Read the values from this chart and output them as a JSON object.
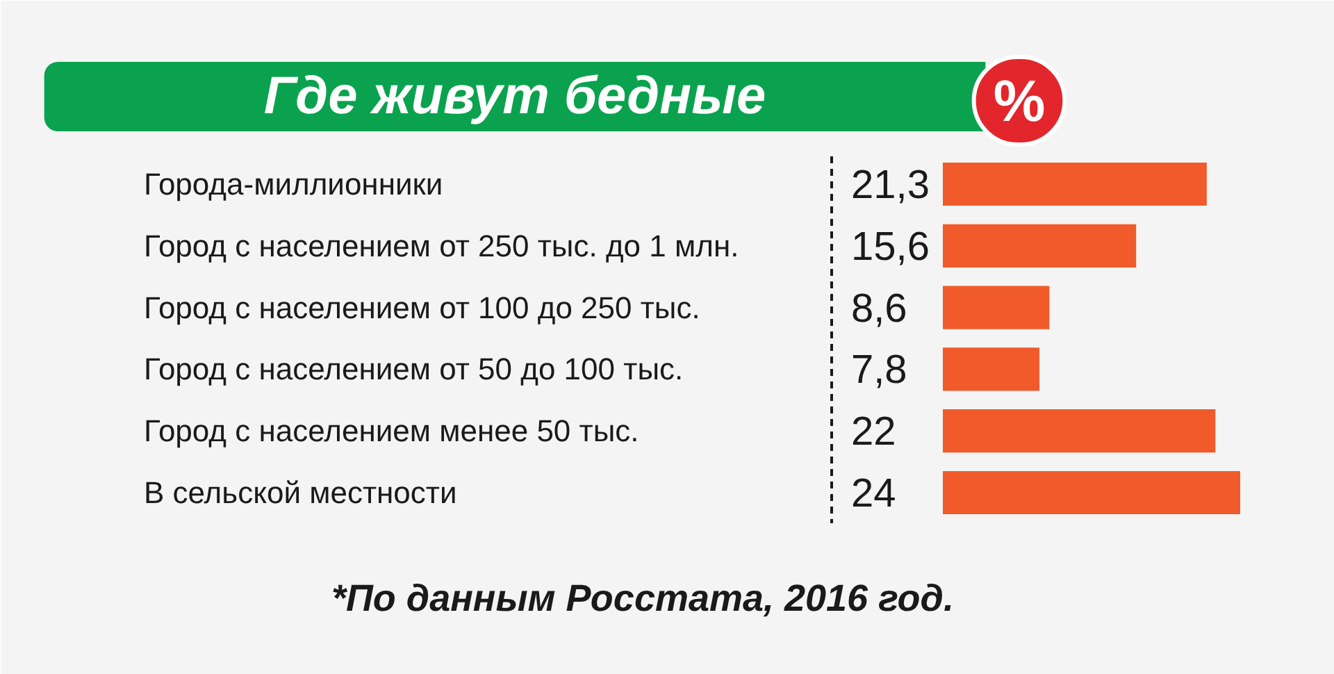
{
  "chart_data": {
    "type": "bar",
    "orientation": "horizontal",
    "title": "Где живут бедные",
    "xlabel": "%",
    "categories": [
      "Города-миллионники",
      "Город с населением от 250 тыс. до 1 млн.",
      "Город с населением от 100 до 250 тыс.",
      "Город с населением от 50 до 100 тыс.",
      "Город с населением менее 50 тыс.",
      "В сельской местности"
    ],
    "values": [
      21.3,
      15.6,
      8.6,
      7.8,
      22,
      24
    ],
    "value_labels": [
      "21,3",
      "15,6",
      "8,6",
      "7,8",
      "22",
      "24"
    ],
    "color": "#f15a2b",
    "annotations": [
      "*По данным Росстата, 2016 год."
    ]
  }
}
